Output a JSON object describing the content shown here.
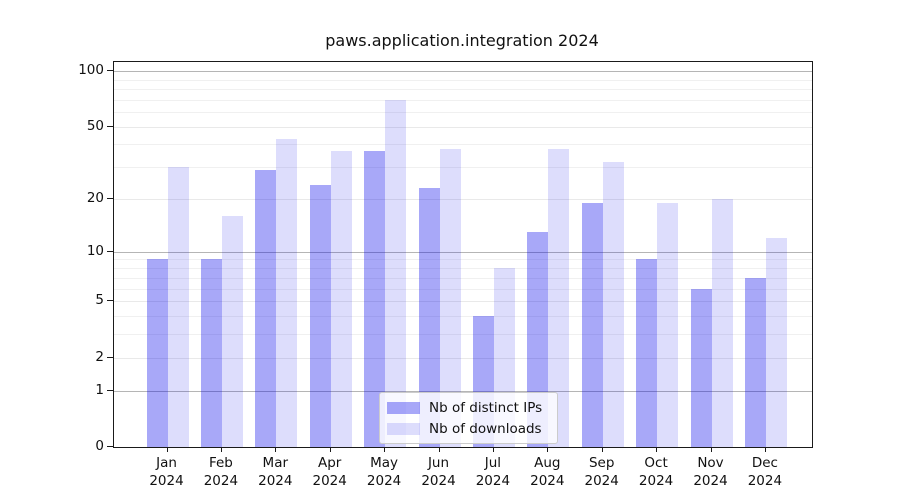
{
  "chart_data": {
    "type": "bar",
    "title": "paws.application.integration 2024",
    "categories": [
      "Jan 2024",
      "Feb 2024",
      "Mar 2024",
      "Apr 2024",
      "May 2024",
      "Jun 2024",
      "Jul 2024",
      "Aug 2024",
      "Sep 2024",
      "Oct 2024",
      "Nov 2024",
      "Dec 2024"
    ],
    "series": [
      {
        "name": "Nb of distinct IPs",
        "color": "#a8a8f6",
        "values": [
          9,
          9,
          29,
          24,
          37,
          23,
          4,
          13,
          19,
          9,
          6,
          7
        ]
      },
      {
        "name": "Nb of downloads",
        "color": "#dcdcfb",
        "values": [
          30,
          16,
          43,
          37,
          70,
          38,
          8,
          38,
          32,
          19,
          20,
          12
        ]
      }
    ],
    "yscale": "log1p",
    "ylim": [
      0,
      108
    ],
    "ytick_labels": [
      0,
      1,
      2,
      5,
      10,
      20,
      50,
      100
    ],
    "major_gridlines": [
      1,
      2,
      5,
      10,
      20,
      50,
      100
    ],
    "decade_gridlines": [
      1,
      10,
      100
    ],
    "minor_gridlines": [
      3,
      4,
      6,
      7,
      8,
      9,
      30,
      40,
      60,
      70,
      80,
      90
    ],
    "grid": "on",
    "legend_position": "lower center",
    "xlabel": "",
    "ylabel": ""
  },
  "colors": {
    "ips_bar": "#a8a8f6",
    "downloads_bar": "#dcdcfb",
    "decade_grid": "#b5b5b5",
    "minor_grid": "#eeeeee",
    "spine": "#1a1a1a",
    "legend_border": "#cccccc"
  }
}
